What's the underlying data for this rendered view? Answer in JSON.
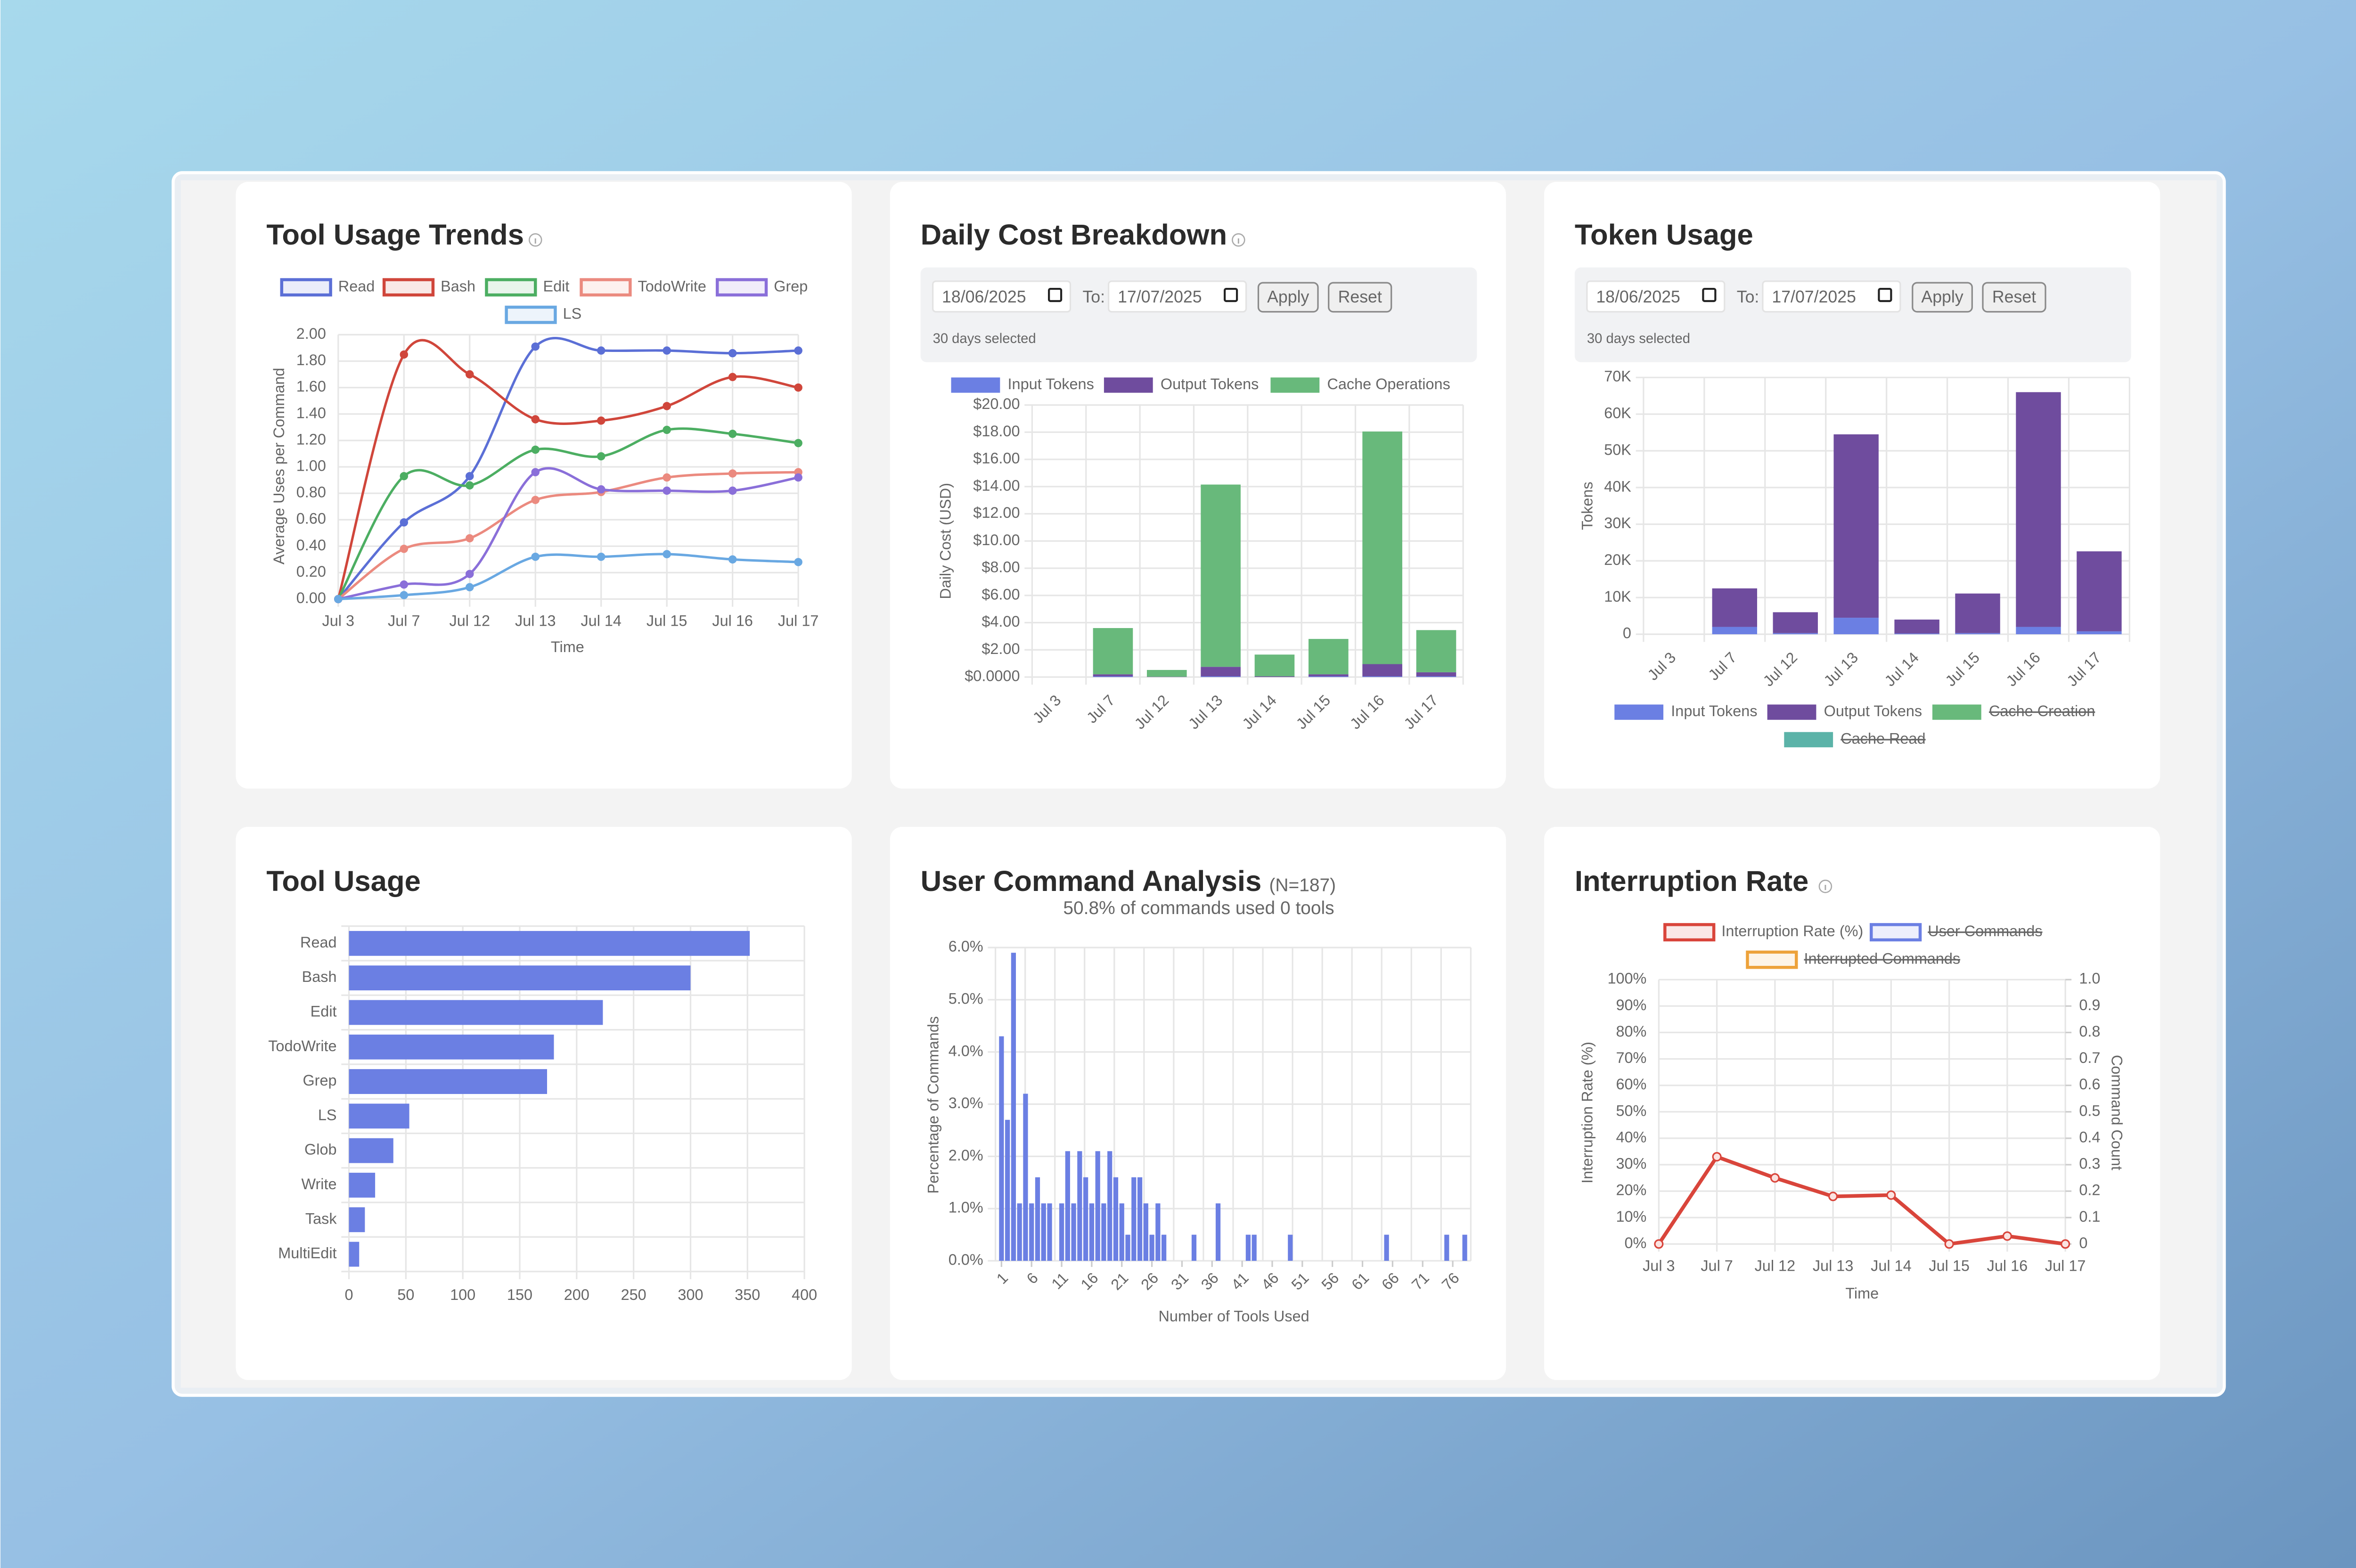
{
  "chart_data": [
    {
      "type": "line",
      "title": "Tool Usage Trends",
      "smooth": true,
      "categories": [
        "Jul 3",
        "Jul 7",
        "Jul 12",
        "Jul 13",
        "Jul 14",
        "Jul 15",
        "Jul 16",
        "Jul 17"
      ],
      "x_label": "Time",
      "y_label": "Average Uses per Command",
      "ylim": [
        0,
        2
      ],
      "yticks": [
        {
          "value": 0,
          "label": "0.00"
        },
        {
          "value": 0.2,
          "label": "0.20"
        },
        {
          "value": 0.4,
          "label": "0.40"
        },
        {
          "value": 0.6,
          "label": "0.60"
        },
        {
          "value": 0.8,
          "label": "0.80"
        },
        {
          "value": 1,
          "label": "1.00"
        },
        {
          "value": 1.2,
          "label": "1.20"
        },
        {
          "value": 1.4,
          "label": "1.40"
        },
        {
          "value": 1.6,
          "label": "1.60"
        },
        {
          "value": 1.8,
          "label": "1.80"
        },
        {
          "value": 2,
          "label": "2.00"
        }
      ],
      "grid": true,
      "series": [
        {
          "name": "Read",
          "color": "#5b6fd6",
          "values": [
            0,
            0.58,
            0.93,
            1.91,
            1.88,
            1.88,
            1.86,
            1.88
          ]
        },
        {
          "name": "Bash",
          "color": "#d0463b",
          "values": [
            0,
            1.85,
            1.7,
            1.36,
            1.35,
            1.46,
            1.68,
            1.6
          ]
        },
        {
          "name": "Edit",
          "color": "#4cae62",
          "values": [
            0,
            0.93,
            0.86,
            1.13,
            1.08,
            1.28,
            1.25,
            1.18
          ]
        },
        {
          "name": "TodoWrite",
          "color": "#eb8a7f",
          "values": [
            0,
            0.38,
            0.46,
            0.75,
            0.81,
            0.92,
            0.95,
            0.96
          ]
        },
        {
          "name": "Grep",
          "color": "#8a6fd9",
          "values": [
            0,
            0.11,
            0.19,
            0.96,
            0.83,
            0.82,
            0.82,
            0.92
          ]
        },
        {
          "name": "LS",
          "color": "#69a8e2",
          "values": [
            0,
            0.03,
            0.09,
            0.32,
            0.32,
            0.34,
            0.3,
            0.28
          ]
        }
      ]
    },
    {
      "type": "bar",
      "stacked": true,
      "title": "Daily Cost Breakdown",
      "date_filter": {
        "from": "18/06/2025",
        "to_label": "To:",
        "to": "17/07/2025",
        "apply": "Apply",
        "reset": "Reset",
        "status": "30 days selected"
      },
      "categories": [
        "Jul 3",
        "Jul 7",
        "Jul 12",
        "Jul 13",
        "Jul 14",
        "Jul 15",
        "Jul 16",
        "Jul 17"
      ],
      "y_label": "Daily Cost (USD)",
      "ylim": [
        0,
        20
      ],
      "yticks": [
        {
          "value": 0,
          "label": "$0.0000"
        },
        {
          "value": 2,
          "label": "$2.00"
        },
        {
          "value": 4,
          "label": "$4.00"
        },
        {
          "value": 6,
          "label": "$6.00"
        },
        {
          "value": 8,
          "label": "$8.00"
        },
        {
          "value": 10,
          "label": "$10.00"
        },
        {
          "value": 12,
          "label": "$12.00"
        },
        {
          "value": 14,
          "label": "$14.00"
        },
        {
          "value": 16,
          "label": "$16.00"
        },
        {
          "value": 18,
          "label": "$18.00"
        },
        {
          "value": 20,
          "label": "$20.00"
        }
      ],
      "grid": true,
      "series": [
        {
          "name": "Input Tokens",
          "color": "#6b7fe3",
          "values": [
            0,
            0.05,
            0,
            0.05,
            0,
            0.05,
            0.05,
            0.05
          ]
        },
        {
          "name": "Output Tokens",
          "color": "#6f4c9e",
          "values": [
            0,
            0.15,
            0.02,
            0.7,
            0.05,
            0.15,
            0.9,
            0.3
          ]
        },
        {
          "name": "Cache Operations",
          "color": "#68b97b",
          "values": [
            0,
            3.4,
            0.5,
            13.4,
            1.6,
            2.6,
            17.1,
            3.1
          ]
        }
      ]
    },
    {
      "type": "bar",
      "stacked": true,
      "title": "Token Usage",
      "date_filter": {
        "from": "18/06/2025",
        "to_label": "To:",
        "to": "17/07/2025",
        "apply": "Apply",
        "reset": "Reset",
        "status": "30 days selected"
      },
      "categories": [
        "Jul 3",
        "Jul 7",
        "Jul 12",
        "Jul 13",
        "Jul 14",
        "Jul 15",
        "Jul 16",
        "Jul 17"
      ],
      "y_label": "Tokens",
      "ylim": [
        0,
        70000
      ],
      "yticks": [
        0,
        {
          "value": 10000,
          "label": "10K"
        },
        {
          "value": 20000,
          "label": "20K"
        },
        {
          "value": 30000,
          "label": "30K"
        },
        {
          "value": 40000,
          "label": "40K"
        },
        {
          "value": 50000,
          "label": "50K"
        },
        {
          "value": 60000,
          "label": "60K"
        },
        {
          "value": 70000,
          "label": "70K"
        }
      ],
      "grid": true,
      "series": [
        {
          "name": "Input Tokens",
          "color": "#6b7fe3",
          "values": [
            0,
            2000,
            300,
            4500,
            200,
            300,
            2000,
            800
          ]
        },
        {
          "name": "Output Tokens",
          "color": "#6f4c9e",
          "values": [
            0,
            10500,
            5700,
            50000,
            3800,
            10800,
            64000,
            21800
          ]
        },
        {
          "name": "Cache Creation",
          "color": "#68b97b",
          "hidden": true
        },
        {
          "name": "Cache Read",
          "color": "#5bb3a8",
          "hidden": true
        }
      ]
    },
    {
      "type": "bar",
      "orientation": "horizontal",
      "title": "Tool Usage",
      "categories": [
        "Read",
        "Bash",
        "Edit",
        "TodoWrite",
        "Grep",
        "LS",
        "Glob",
        "Write",
        "Task",
        "MultiEdit"
      ],
      "values": [
        352,
        300,
        223,
        180,
        174,
        53,
        39,
        23,
        14,
        9
      ],
      "color": "#6b7fe3",
      "xlim": [
        0,
        400
      ],
      "xticks": [
        0,
        50,
        100,
        150,
        200,
        250,
        300,
        350,
        400
      ],
      "grid": true
    },
    {
      "type": "bar",
      "title": "User Command Analysis",
      "title_note": "(N=187)",
      "subtitle": "50.8% of commands used 0 tools",
      "x_label": "Number of Tools Used",
      "y_label": "Percentage of Commands",
      "x": [
        1,
        2,
        3,
        4,
        5,
        6,
        7,
        8,
        9,
        10,
        11,
        12,
        13,
        14,
        15,
        16,
        17,
        18,
        19,
        20,
        21,
        22,
        23,
        24,
        25,
        26,
        27,
        28,
        29,
        30,
        31,
        32,
        33,
        34,
        35,
        36,
        37,
        38,
        39,
        40,
        41,
        42,
        43,
        44,
        45,
        46,
        47,
        48,
        49,
        50,
        51,
        52,
        53,
        54,
        55,
        56,
        57,
        58,
        59,
        60,
        61,
        62,
        63,
        64,
        65,
        66,
        67,
        68,
        69,
        70,
        71,
        72,
        73,
        74,
        75,
        76,
        77,
        78
      ],
      "values": [
        4.3,
        2.7,
        5.9,
        1.1,
        3.2,
        1.1,
        1.6,
        1.1,
        1.1,
        0,
        1.1,
        2.1,
        1.1,
        2.1,
        1.6,
        1.1,
        2.1,
        1.1,
        2.1,
        1.6,
        1.1,
        0.5,
        1.6,
        1.6,
        1.1,
        0.5,
        1.1,
        0.5,
        0,
        0,
        0,
        0,
        0.5,
        0,
        0,
        0,
        1.1,
        0,
        0,
        0,
        0,
        0.5,
        0.5,
        0,
        0,
        0,
        0,
        0,
        0.5,
        0,
        0,
        0,
        0,
        0,
        0,
        0,
        0,
        0,
        0,
        0,
        0,
        0,
        0,
        0,
        0.5,
        0,
        0,
        0,
        0,
        0,
        0,
        0,
        0,
        0,
        0.5,
        0,
        0,
        0.5
      ],
      "color": "#6b7fe3",
      "xlim": [
        0,
        79
      ],
      "xticks": [
        1,
        6,
        11,
        16,
        21,
        26,
        31,
        36,
        41,
        46,
        51,
        56,
        61,
        66,
        71,
        76
      ],
      "ylim": [
        0,
        6
      ],
      "yticks": [
        {
          "value": 0,
          "label": "0.0%"
        },
        {
          "value": 1,
          "label": "1.0%"
        },
        {
          "value": 2,
          "label": "2.0%"
        },
        {
          "value": 3,
          "label": "3.0%"
        },
        {
          "value": 4,
          "label": "4.0%"
        },
        {
          "value": 5,
          "label": "5.0%"
        },
        {
          "value": 6,
          "label": "6.0%"
        }
      ],
      "grid": true
    },
    {
      "type": "line",
      "title": "Interruption Rate",
      "smooth": false,
      "categories": [
        "Jul 3",
        "Jul 7",
        "Jul 12",
        "Jul 13",
        "Jul 14",
        "Jul 15",
        "Jul 16",
        "Jul 17"
      ],
      "x_label": "Time",
      "y_label": "Interruption Rate (%)",
      "y2_label": "Command Count",
      "ylim": [
        0,
        100
      ],
      "yticks": [
        {
          "value": 0,
          "label": "0%"
        },
        {
          "value": 10,
          "label": "10%"
        },
        {
          "value": 20,
          "label": "20%"
        },
        {
          "value": 30,
          "label": "30%"
        },
        {
          "value": 40,
          "label": "40%"
        },
        {
          "value": 50,
          "label": "50%"
        },
        {
          "value": 60,
          "label": "60%"
        },
        {
          "value": 70,
          "label": "70%"
        },
        {
          "value": 80,
          "label": "80%"
        },
        {
          "value": 90,
          "label": "90%"
        },
        {
          "value": 100,
          "label": "100%"
        }
      ],
      "y2lim": [
        0,
        1
      ],
      "y2ticks": [
        0,
        0.1,
        0.2,
        0.3,
        0.4,
        0.5,
        0.6,
        0.7,
        0.8,
        0.9,
        {
          "value": 1,
          "label": "1.0"
        }
      ],
      "grid": true,
      "series": [
        {
          "name": "Interruption Rate (%)",
          "color": "#d9453b",
          "values": [
            0,
            33,
            25,
            18,
            18.5,
            0,
            3,
            0
          ]
        },
        {
          "name": "User Commands",
          "color": "#6b7fe3",
          "hidden": true,
          "axis": "y2"
        },
        {
          "name": "Interrupted Commands",
          "color": "#eda23a",
          "hidden": true,
          "axis": "y2"
        }
      ]
    }
  ]
}
